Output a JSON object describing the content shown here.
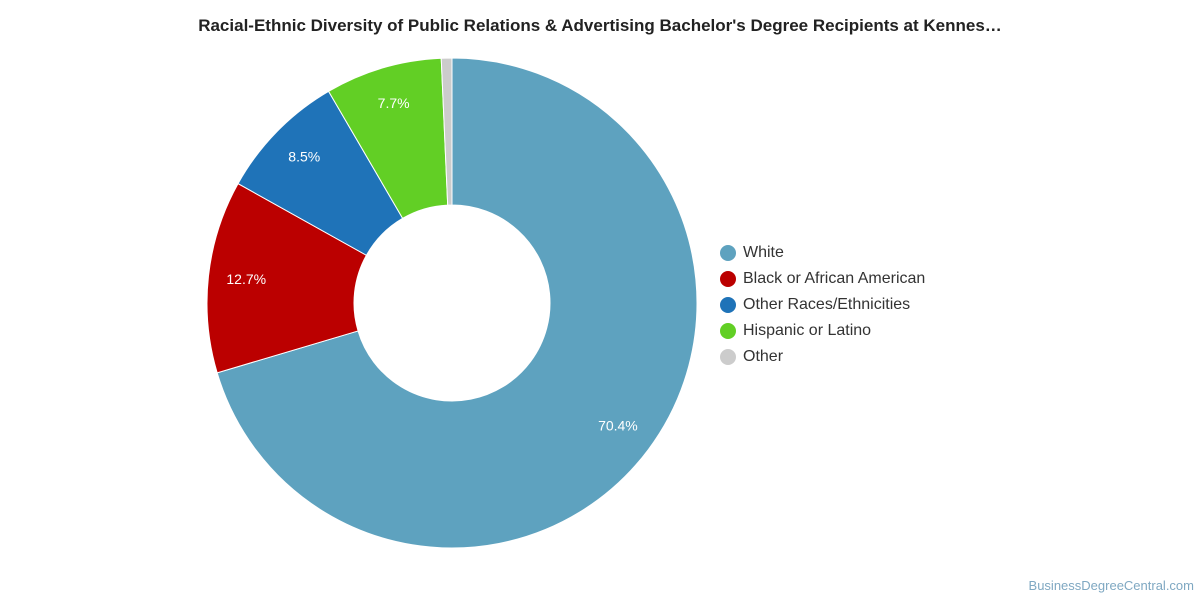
{
  "chart_data": {
    "type": "pie",
    "title": "Racial-Ethnic Diversity of Public Relations & Advertising Bachelor's Degree Recipients at Kennes…",
    "categories": [
      "White",
      "Black or African American",
      "Other Races/Ethnicities",
      "Hispanic or Latino",
      "Other"
    ],
    "values": [
      70.4,
      12.7,
      8.5,
      7.7,
      0.7
    ],
    "labels": [
      "70.4%",
      "12.7%",
      "8.5%",
      "7.7%",
      ""
    ],
    "colors": [
      "#5ea2bf",
      "#bb0000",
      "#1f73b8",
      "#62cf25",
      "#cccccc"
    ],
    "legend_position": "right",
    "style": "donut"
  },
  "footer": {
    "credit": "BusinessDegreeCentral.com"
  }
}
